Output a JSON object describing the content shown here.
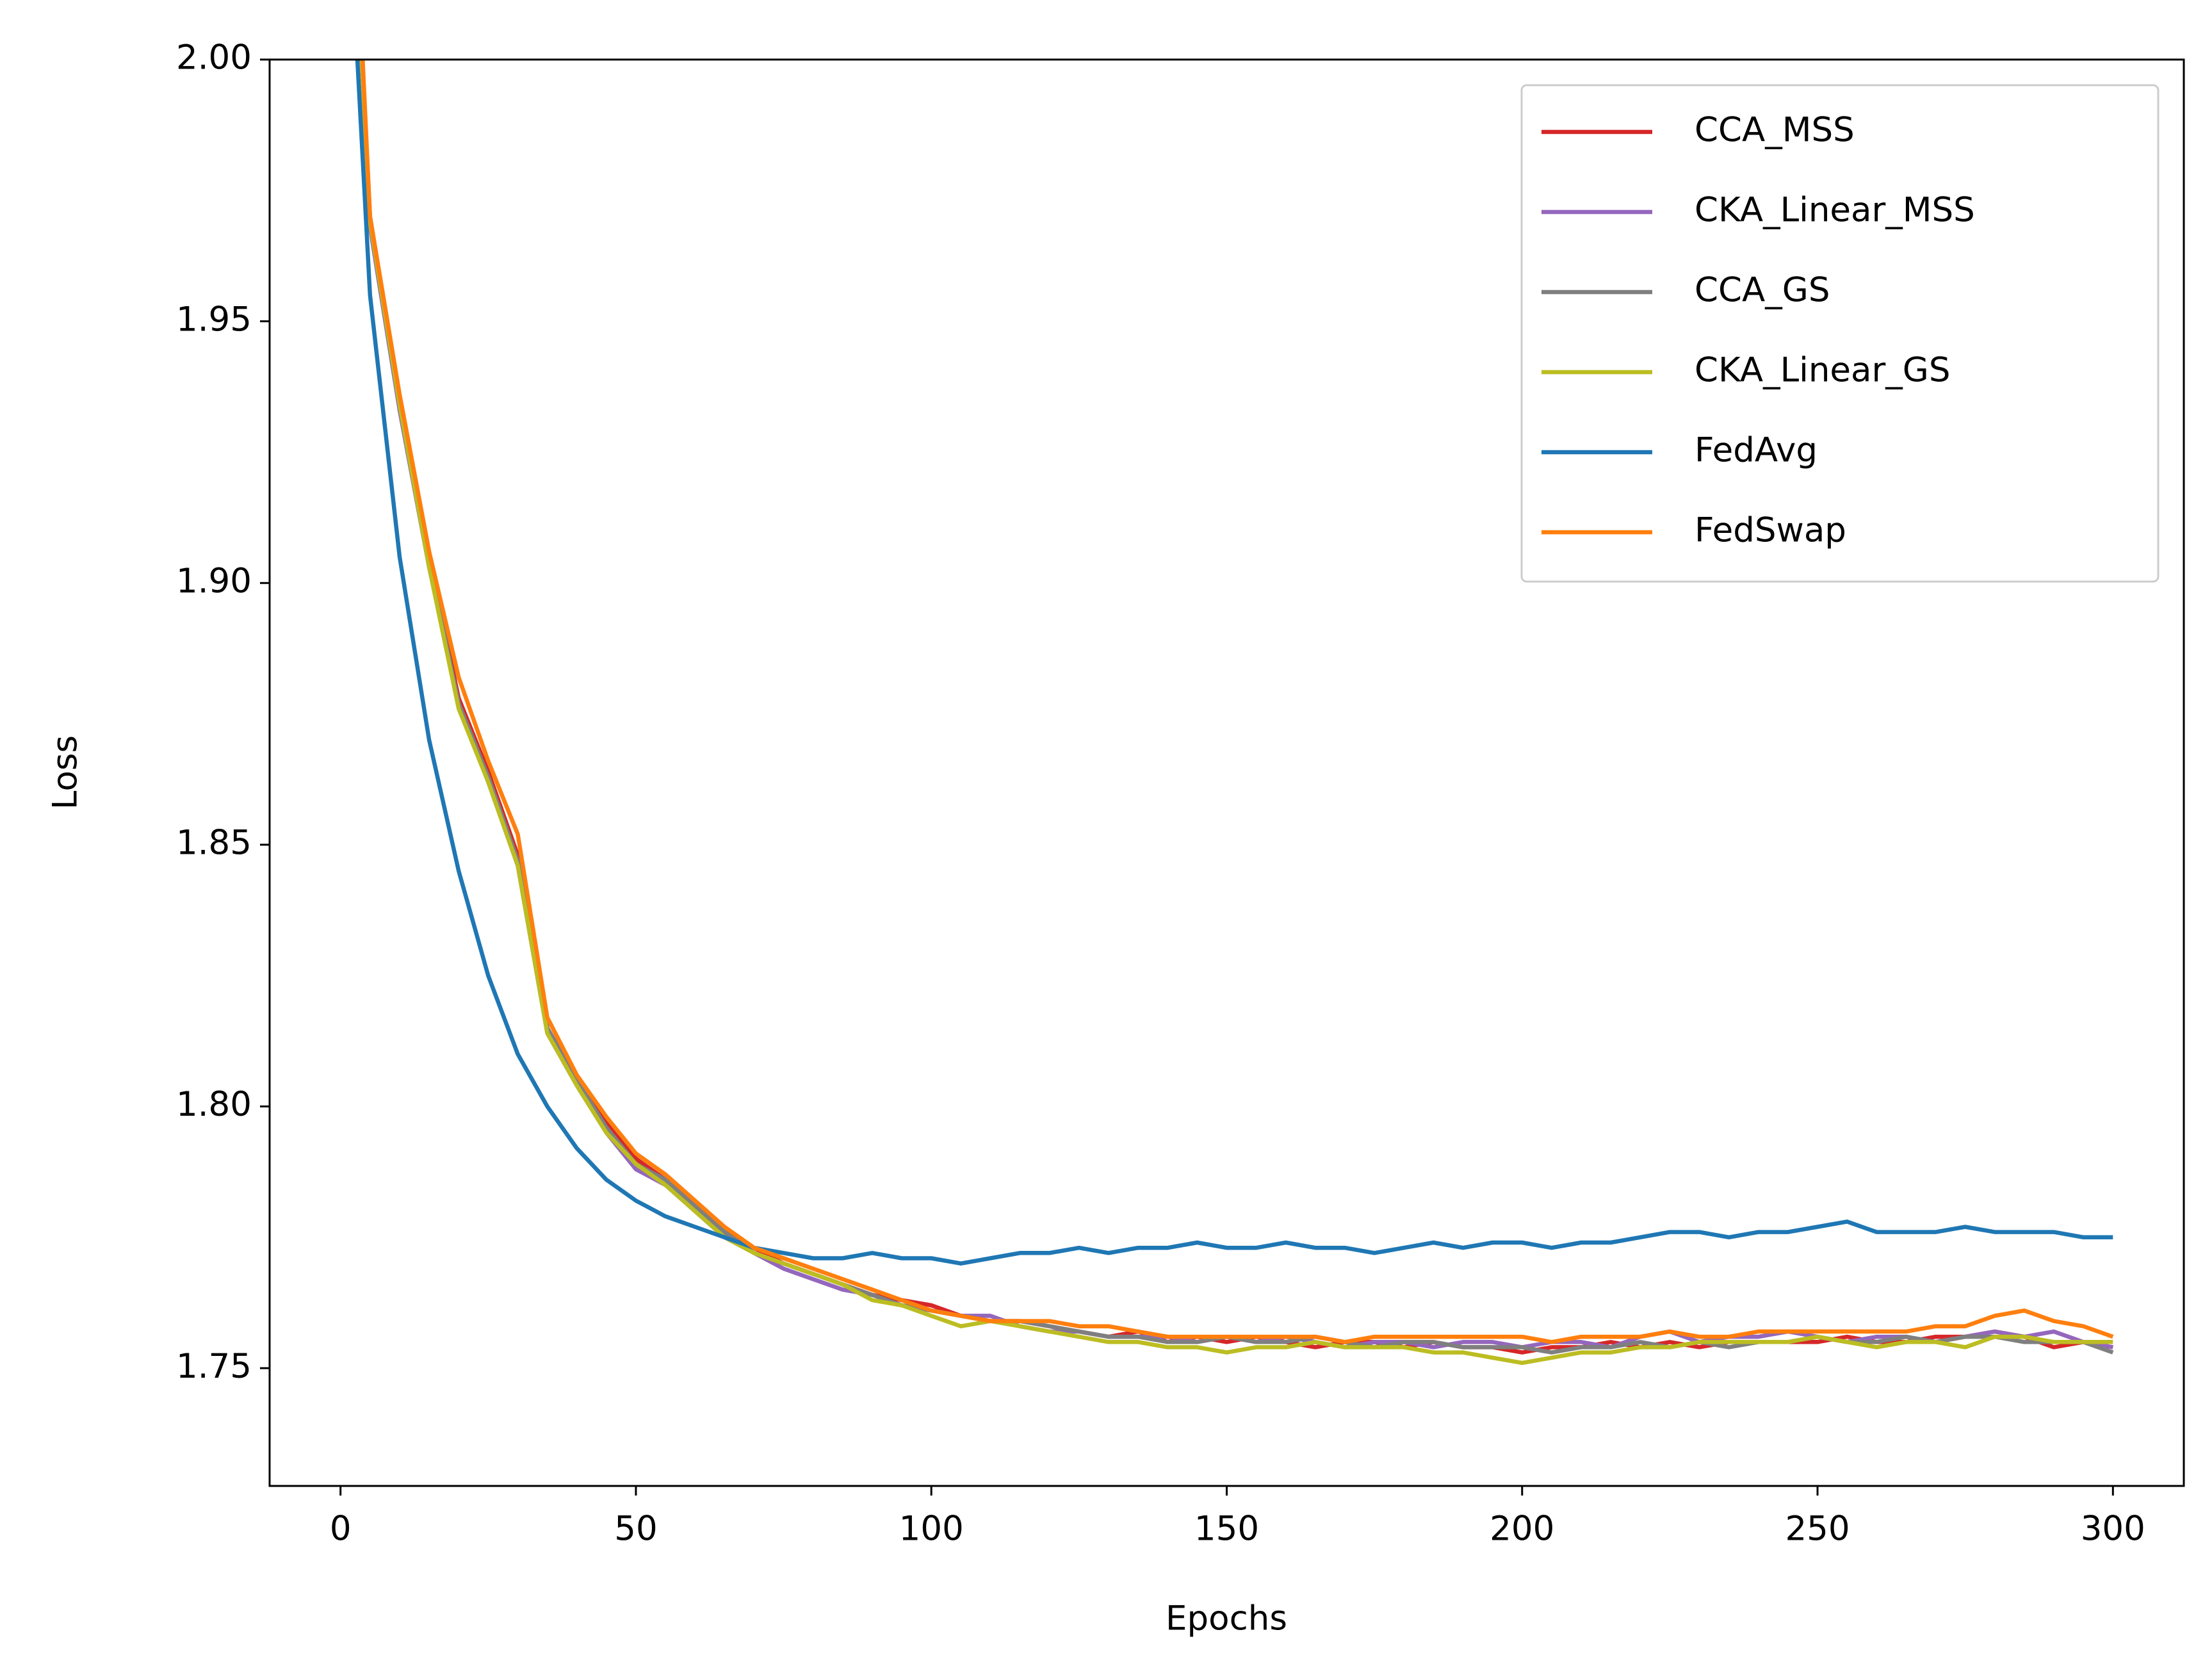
{
  "chart_data": {
    "type": "line",
    "x_label": "Epochs",
    "y_label": "Loss",
    "x": [
      0,
      5,
      10,
      15,
      20,
      25,
      30,
      35,
      40,
      45,
      50,
      55,
      60,
      65,
      70,
      75,
      80,
      85,
      90,
      95,
      100,
      105,
      110,
      115,
      120,
      125,
      130,
      135,
      140,
      145,
      150,
      155,
      160,
      165,
      170,
      175,
      180,
      185,
      190,
      195,
      200,
      205,
      210,
      215,
      220,
      225,
      230,
      235,
      240,
      245,
      250,
      255,
      260,
      265,
      270,
      275,
      280,
      285,
      290,
      295,
      300
    ],
    "xlim": [
      -12,
      312
    ],
    "ylim": [
      1.7275,
      2.0
    ],
    "xticks": [
      0,
      50,
      100,
      150,
      200,
      250,
      300
    ],
    "yticks": [
      1.75,
      {
        "value": 1.8,
        "label": "1.80"
      },
      1.85,
      {
        "value": 1.9,
        "label": "1.90"
      },
      1.95,
      {
        "value": 2.0,
        "label": "2.00"
      }
    ],
    "legend": "upper right",
    "series": [
      {
        "name": "CCA_MSS",
        "color": "#d62728",
        "values": [
          2.08,
          1.97,
          1.935,
          1.905,
          1.878,
          1.864,
          1.848,
          1.815,
          1.805,
          1.797,
          1.79,
          1.786,
          1.781,
          1.776,
          1.773,
          1.77,
          1.768,
          1.766,
          1.764,
          1.763,
          1.762,
          1.76,
          1.759,
          1.759,
          1.758,
          1.757,
          1.756,
          1.757,
          1.755,
          1.756,
          1.755,
          1.756,
          1.755,
          1.754,
          1.755,
          1.755,
          1.754,
          1.755,
          1.754,
          1.754,
          1.753,
          1.754,
          1.754,
          1.755,
          1.754,
          1.755,
          1.754,
          1.755,
          1.755,
          1.755,
          1.755,
          1.756,
          1.755,
          1.755,
          1.756,
          1.756,
          1.757,
          1.756,
          1.754,
          1.755,
          1.754
        ]
      },
      {
        "name": "CKA_Linear_MSS",
        "color": "#9467bd",
        "values": [
          2.08,
          1.968,
          1.933,
          1.903,
          1.877,
          1.862,
          1.846,
          1.814,
          1.804,
          1.795,
          1.788,
          1.785,
          1.78,
          1.775,
          1.772,
          1.769,
          1.767,
          1.765,
          1.764,
          1.762,
          1.761,
          1.76,
          1.76,
          1.758,
          1.757,
          1.757,
          1.756,
          1.756,
          1.756,
          1.755,
          1.756,
          1.755,
          1.756,
          1.755,
          1.754,
          1.755,
          1.755,
          1.754,
          1.755,
          1.755,
          1.754,
          1.755,
          1.755,
          1.754,
          1.756,
          1.757,
          1.755,
          1.756,
          1.756,
          1.757,
          1.756,
          1.755,
          1.756,
          1.756,
          1.755,
          1.756,
          1.757,
          1.756,
          1.757,
          1.755,
          1.754
        ]
      },
      {
        "name": "CCA_GS",
        "color": "#7f7f7f",
        "values": [
          2.08,
          1.969,
          1.934,
          1.904,
          1.877,
          1.863,
          1.847,
          1.815,
          1.805,
          1.796,
          1.789,
          1.786,
          1.781,
          1.776,
          1.772,
          1.77,
          1.768,
          1.766,
          1.764,
          1.762,
          1.761,
          1.76,
          1.759,
          1.759,
          1.758,
          1.757,
          1.756,
          1.756,
          1.755,
          1.755,
          1.756,
          1.755,
          1.755,
          1.756,
          1.755,
          1.754,
          1.755,
          1.755,
          1.754,
          1.754,
          1.754,
          1.753,
          1.754,
          1.754,
          1.755,
          1.754,
          1.755,
          1.754,
          1.755,
          1.755,
          1.756,
          1.755,
          1.755,
          1.756,
          1.755,
          1.756,
          1.756,
          1.755,
          1.755,
          1.755,
          1.753
        ]
      },
      {
        "name": "CKA_Linear_GS",
        "color": "#bcbd22",
        "values": [
          2.08,
          1.969,
          1.934,
          1.903,
          1.876,
          1.862,
          1.846,
          1.814,
          1.804,
          1.795,
          1.789,
          1.785,
          1.78,
          1.775,
          1.772,
          1.77,
          1.768,
          1.766,
          1.763,
          1.762,
          1.76,
          1.758,
          1.759,
          1.758,
          1.757,
          1.756,
          1.755,
          1.755,
          1.754,
          1.754,
          1.753,
          1.754,
          1.754,
          1.755,
          1.754,
          1.754,
          1.754,
          1.753,
          1.753,
          1.752,
          1.751,
          1.752,
          1.753,
          1.753,
          1.754,
          1.754,
          1.755,
          1.755,
          1.755,
          1.755,
          1.756,
          1.755,
          1.754,
          1.755,
          1.755,
          1.754,
          1.756,
          1.756,
          1.755,
          1.755,
          1.755
        ]
      },
      {
        "name": "FedAvg",
        "color": "#1f77b4",
        "values": [
          2.06,
          1.955,
          1.905,
          1.87,
          1.845,
          1.825,
          1.81,
          1.8,
          1.792,
          1.786,
          1.782,
          1.779,
          1.777,
          1.775,
          1.773,
          1.772,
          1.771,
          1.771,
          1.772,
          1.771,
          1.771,
          1.77,
          1.771,
          1.772,
          1.772,
          1.773,
          1.772,
          1.773,
          1.773,
          1.774,
          1.773,
          1.773,
          1.774,
          1.773,
          1.773,
          1.772,
          1.773,
          1.774,
          1.773,
          1.774,
          1.774,
          1.773,
          1.774,
          1.774,
          1.775,
          1.776,
          1.776,
          1.775,
          1.776,
          1.776,
          1.777,
          1.778,
          1.776,
          1.776,
          1.776,
          1.777,
          1.776,
          1.776,
          1.776,
          1.775,
          1.775
        ]
      },
      {
        "name": "FedSwap",
        "color": "#ff7f0e",
        "values": [
          2.09,
          1.97,
          1.936,
          1.906,
          1.882,
          1.866,
          1.852,
          1.817,
          1.806,
          1.798,
          1.791,
          1.787,
          1.782,
          1.777,
          1.773,
          1.771,
          1.769,
          1.767,
          1.765,
          1.763,
          1.761,
          1.76,
          1.759,
          1.759,
          1.759,
          1.758,
          1.758,
          1.757,
          1.756,
          1.756,
          1.756,
          1.756,
          1.756,
          1.756,
          1.755,
          1.756,
          1.756,
          1.756,
          1.756,
          1.756,
          1.756,
          1.755,
          1.756,
          1.756,
          1.756,
          1.757,
          1.756,
          1.756,
          1.757,
          1.757,
          1.757,
          1.757,
          1.757,
          1.757,
          1.758,
          1.758,
          1.76,
          1.761,
          1.759,
          1.758,
          1.756
        ]
      }
    ]
  }
}
